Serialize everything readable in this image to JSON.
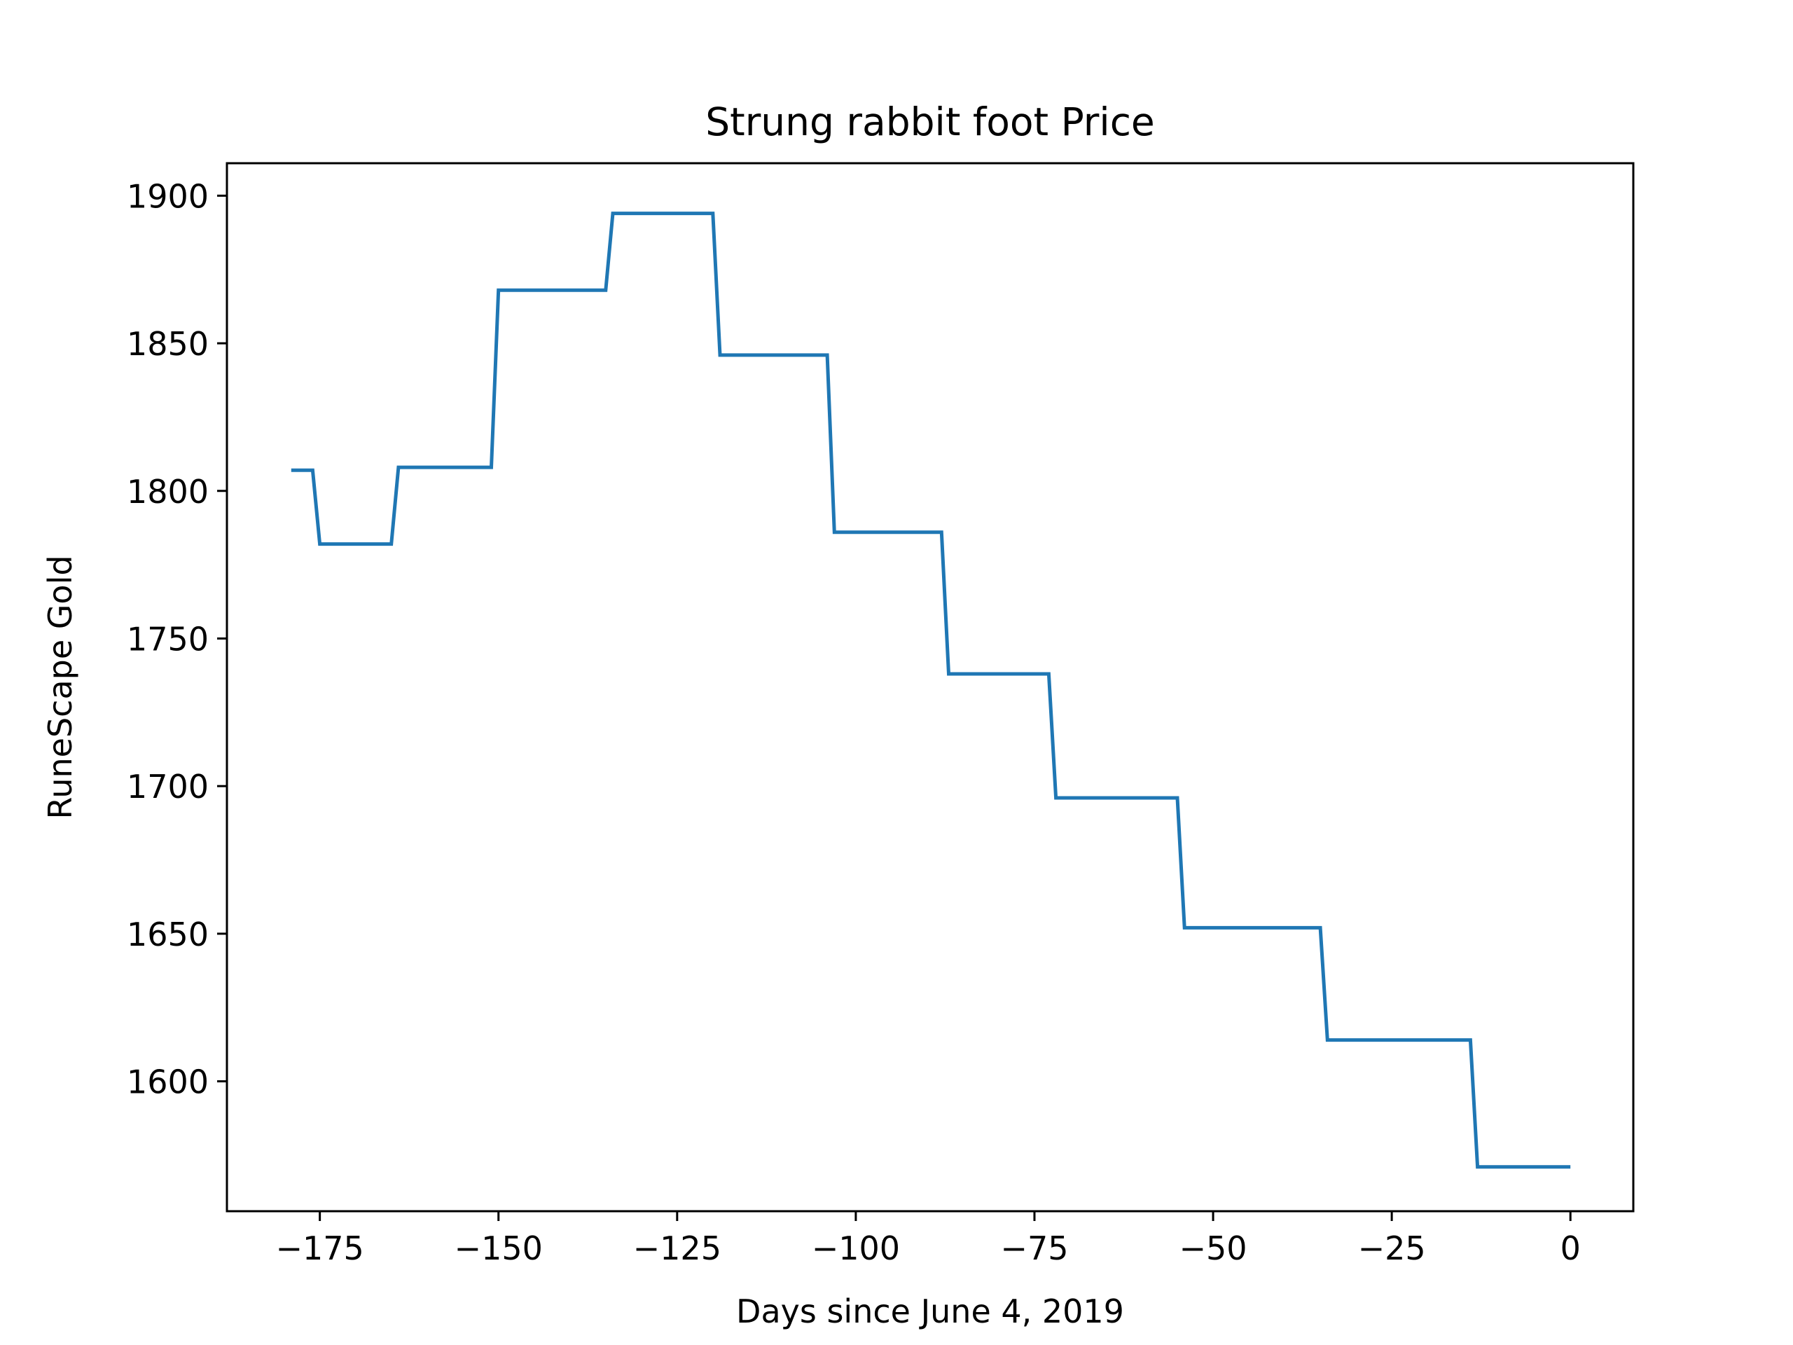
{
  "chart_data": {
    "type": "line",
    "title": "Strung rabbit foot Price",
    "xlabel": "Days since June 4, 2019",
    "ylabel": "RuneScape Gold",
    "xlim": [
      -188,
      8.8
    ],
    "ylim": [
      1556,
      1911
    ],
    "xticks": [
      -175,
      -150,
      -125,
      -100,
      -75,
      -50,
      -25,
      0
    ],
    "xtick_labels": [
      "−175",
      "−150",
      "−125",
      "−100",
      "−75",
      "−50",
      "−25",
      "0"
    ],
    "yticks": [
      1600,
      1650,
      1700,
      1750,
      1800,
      1850,
      1900
    ],
    "ytick_labels": [
      "1600",
      "1650",
      "1700",
      "1750",
      "1800",
      "1850",
      "1900"
    ],
    "grid": false,
    "colors": {
      "line": "#1f77b4",
      "axes": "#000000",
      "background": "#ffffff"
    },
    "series": [
      {
        "x": [
          -179,
          -176,
          -175,
          -165,
          -164,
          -151,
          -150,
          -135,
          -134,
          -120,
          -119,
          -104,
          -103,
          -88,
          -87,
          -73,
          -72,
          -55,
          -54,
          -35,
          -34,
          -14,
          -13,
          0
        ],
        "y": [
          1807,
          1807,
          1782,
          1782,
          1808,
          1808,
          1868,
          1868,
          1894,
          1894,
          1846,
          1846,
          1786,
          1786,
          1738,
          1738,
          1696,
          1696,
          1652,
          1652,
          1614,
          1614,
          1571,
          1571
        ]
      }
    ]
  }
}
